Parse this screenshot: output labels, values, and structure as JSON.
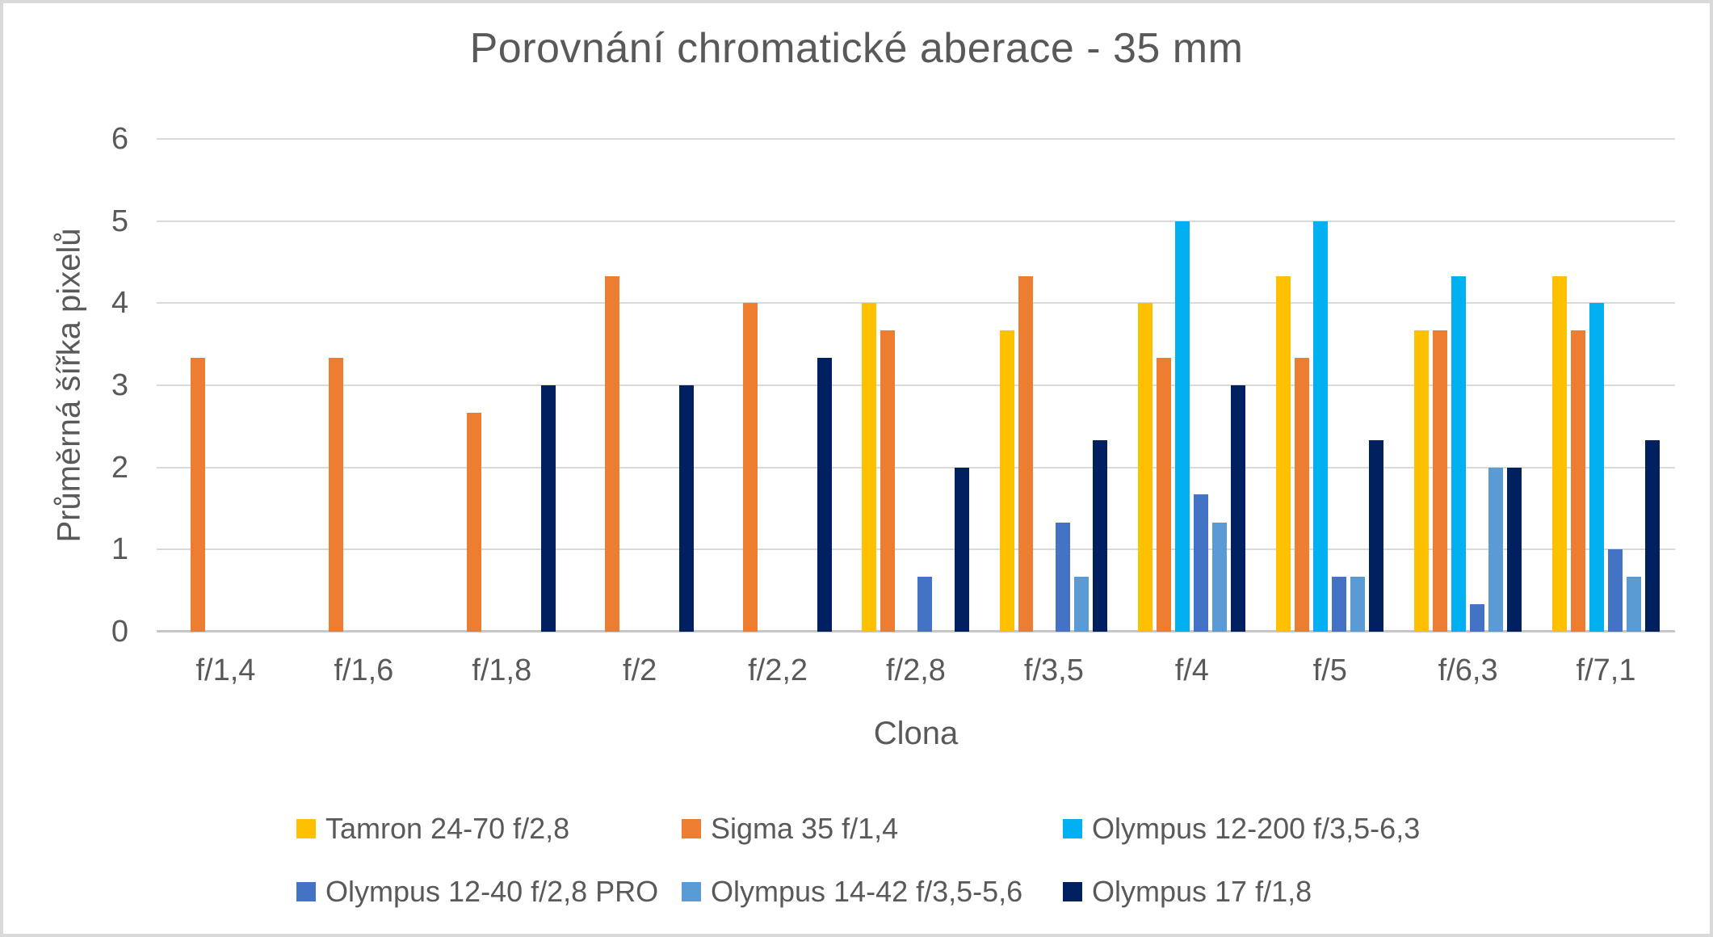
{
  "chart_data": {
    "type": "bar",
    "title": "Porovnání chromatické aberace - 35 mm",
    "xlabel": "Clona",
    "ylabel": "Průměrná šířka pixelů",
    "ylim": [
      0,
      6
    ],
    "ytick_step": 1,
    "grid": true,
    "legend_position": "bottom",
    "categories": [
      "f/1,4",
      "f/1,6",
      "f/1,8",
      "f/2",
      "f/2,2",
      "f/2,8",
      "f/3,5",
      "f/4",
      "f/5",
      "f/6,3",
      "f/7,1"
    ],
    "series": [
      {
        "name": "Tamron 24-70 f/2,8",
        "color": "#FFC000",
        "values": [
          0,
          0,
          0,
          0,
          0,
          4,
          3.67,
          4,
          4.33,
          3.67,
          4.33
        ]
      },
      {
        "name": "Sigma 35 f/1,4",
        "color": "#ED7D31",
        "values": [
          3.33,
          3.33,
          2.67,
          4.33,
          4,
          3.67,
          4.33,
          3.33,
          3.33,
          3.67,
          3.67
        ]
      },
      {
        "name": "Olympus 12-200 f/3,5-6,3",
        "color": "#00B0F0",
        "values": [
          0,
          0,
          0,
          0,
          0,
          0,
          0,
          5,
          5,
          4.33,
          4
        ]
      },
      {
        "name": "Olympus 12-40 f/2,8 PRO",
        "color": "#4472C4",
        "values": [
          0,
          0,
          0,
          0,
          0,
          0.67,
          1.33,
          1.67,
          0.67,
          0.33,
          1
        ]
      },
      {
        "name": "Olympus 14-42 f/3,5-5,6",
        "color": "#5B9BD5",
        "values": [
          0,
          0,
          0,
          0,
          0,
          0,
          0.67,
          1.33,
          0.67,
          2,
          0.67
        ]
      },
      {
        "name": "Olympus 17 f/1,8",
        "color": "#002060",
        "values": [
          0,
          0,
          3,
          3,
          3.33,
          2,
          2.33,
          3,
          2.33,
          2,
          2.33
        ]
      }
    ]
  },
  "colors": {
    "text": "#595959",
    "gridline": "#d9d9d9",
    "axis_line": "#c6c6c6",
    "frame_border": "#d9d9d9",
    "background": "#ffffff"
  }
}
